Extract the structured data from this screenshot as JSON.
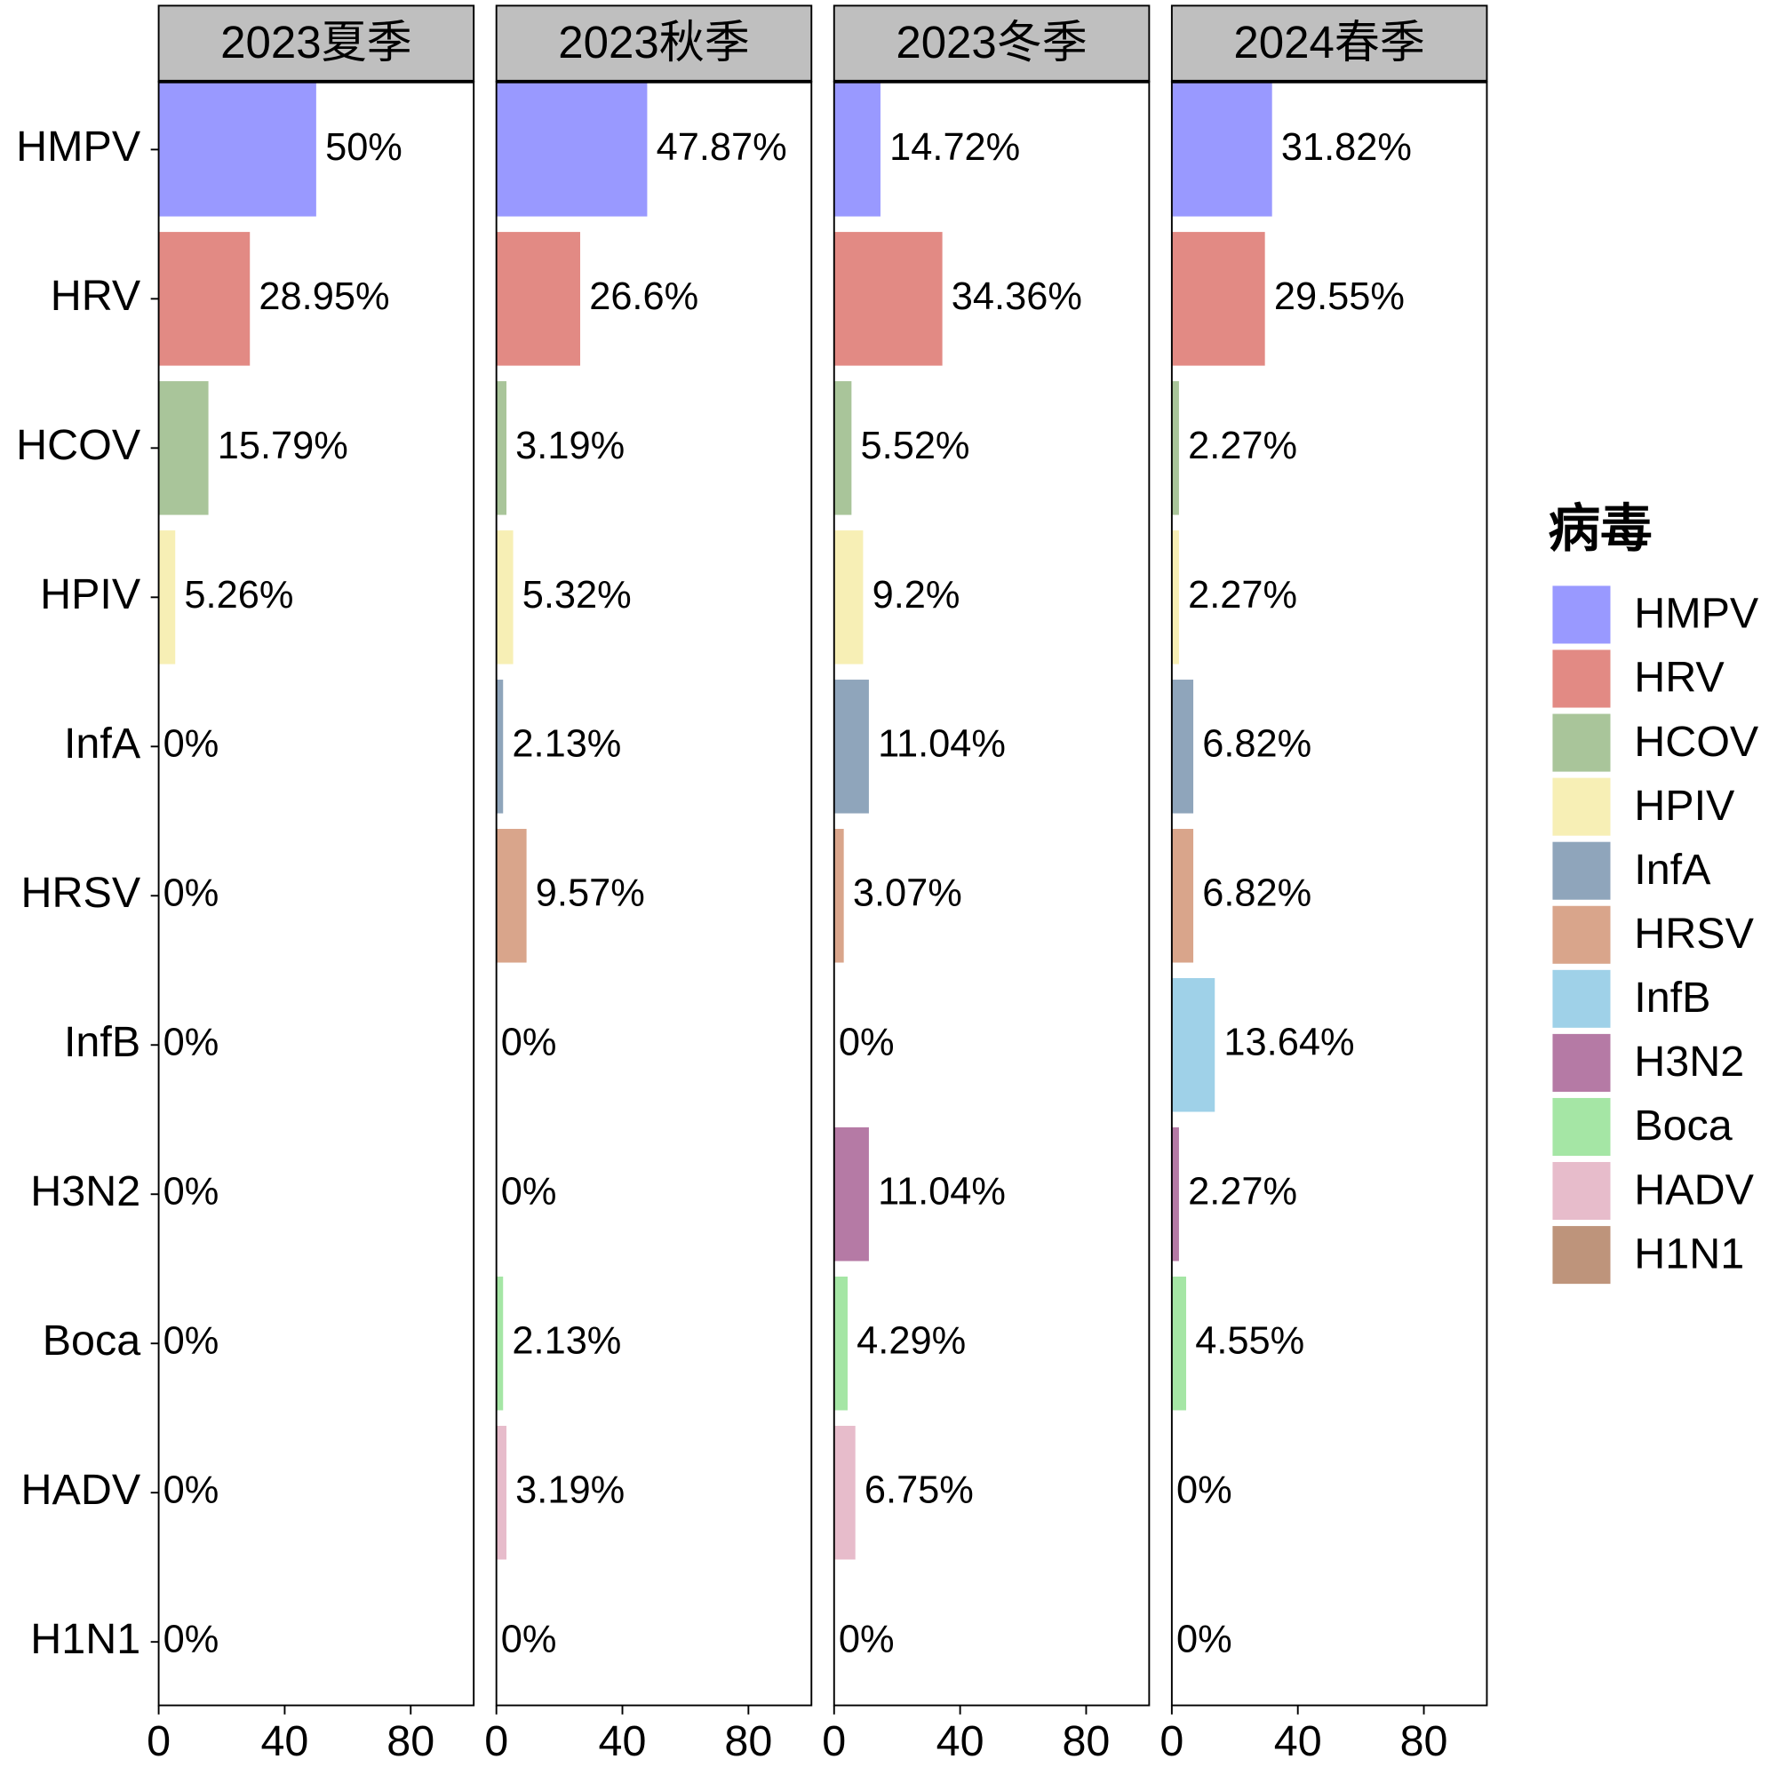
{
  "chart_data": {
    "type": "bar",
    "orientation": "horizontal",
    "categories": [
      "HMPV",
      "HRV",
      "HCOV",
      "HPIV",
      "InfA",
      "HRSV",
      "InfB",
      "H3N2",
      "Boca",
      "HADV",
      "H1N1"
    ],
    "colors": [
      "#9999ff",
      "#e28a84",
      "#a9c59a",
      "#f7efb5",
      "#8fa5bb",
      "#d9a58b",
      "#9fd1e8",
      "#b57aa5",
      "#a5e6a5",
      "#e7bccb",
      "#be947b"
    ],
    "xlim": [
      0,
      100
    ],
    "xticks": [
      0,
      40,
      80
    ],
    "legend": {
      "title": "病毒",
      "position": "right"
    },
    "facets": [
      {
        "title": "2023夏季",
        "values": [
          50,
          28.95,
          15.79,
          5.26,
          0,
          0,
          0,
          0,
          0,
          0,
          0
        ],
        "value_labels": [
          "50%",
          "28.95%",
          "15.79%",
          "5.26%",
          "0%",
          "0%",
          "0%",
          "0%",
          "0%",
          "0%",
          "0%"
        ]
      },
      {
        "title": "2023秋季",
        "values": [
          47.87,
          26.6,
          3.19,
          5.32,
          2.13,
          9.57,
          0,
          0,
          2.13,
          3.19,
          0
        ],
        "value_labels": [
          "47.87%",
          "26.6%",
          "3.19%",
          "5.32%",
          "2.13%",
          "9.57%",
          "0%",
          "0%",
          "2.13%",
          "3.19%",
          "0%"
        ]
      },
      {
        "title": "2023冬季",
        "values": [
          14.72,
          34.36,
          5.52,
          9.2,
          11.04,
          3.07,
          0,
          11.04,
          4.29,
          6.75,
          0
        ],
        "value_labels": [
          "14.72%",
          "34.36%",
          "5.52%",
          "9.2%",
          "11.04%",
          "3.07%",
          "0%",
          "11.04%",
          "4.29%",
          "6.75%",
          "0%"
        ]
      },
      {
        "title": "2024春季",
        "values": [
          31.82,
          29.55,
          2.27,
          2.27,
          6.82,
          6.82,
          13.64,
          2.27,
          4.55,
          0,
          0
        ],
        "value_labels": [
          "31.82%",
          "29.55%",
          "2.27%",
          "2.27%",
          "6.82%",
          "6.82%",
          "13.64%",
          "2.27%",
          "4.55%",
          "0%",
          "0%"
        ]
      }
    ]
  }
}
